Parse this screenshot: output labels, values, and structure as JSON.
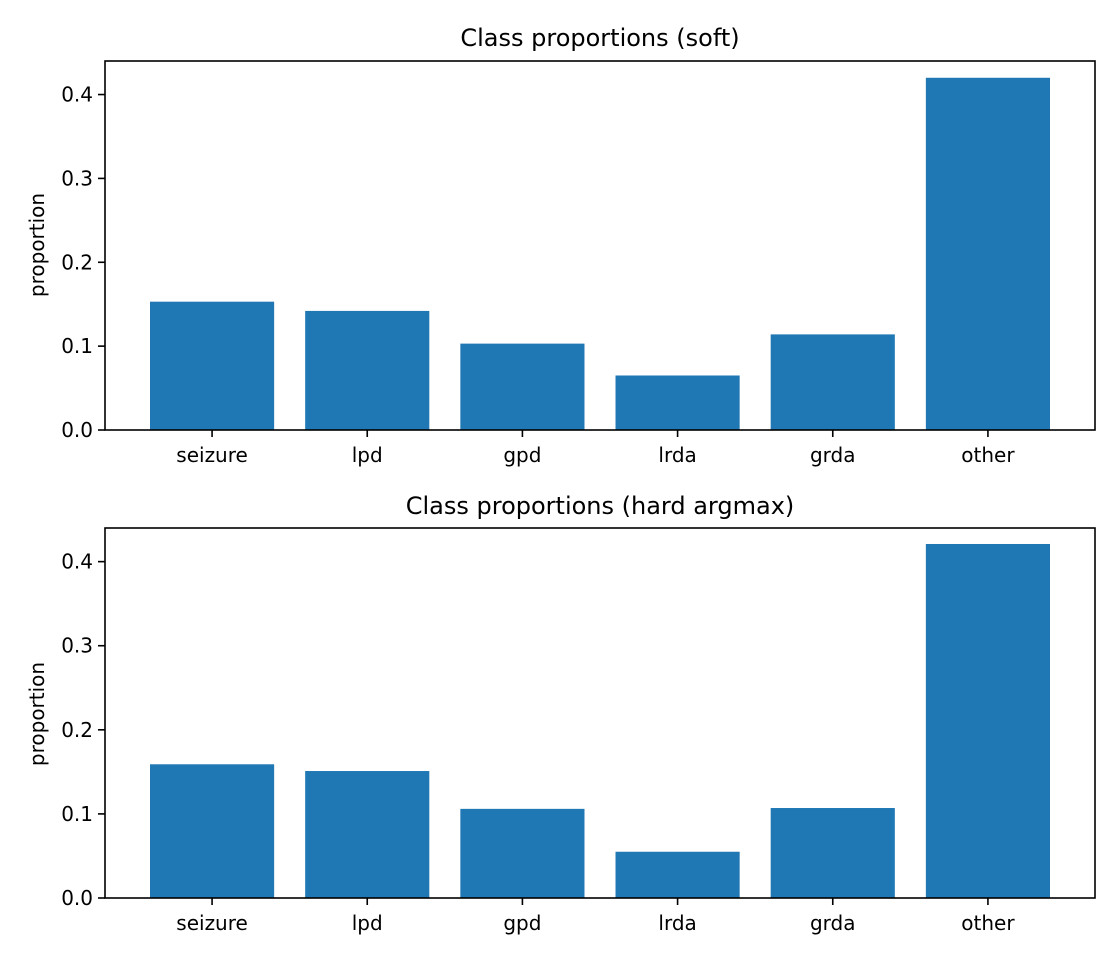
{
  "chart_data": [
    {
      "type": "bar",
      "title": "Class proportions (soft)",
      "xlabel": "",
      "ylabel": "proportion",
      "categories": [
        "seizure",
        "lpd",
        "gpd",
        "lrda",
        "grda",
        "other"
      ],
      "values": [
        0.153,
        0.142,
        0.103,
        0.065,
        0.114,
        0.42
      ],
      "ylim": [
        0,
        0.44
      ],
      "yticks": [
        "0.0",
        "0.1",
        "0.2",
        "0.3",
        "0.4"
      ],
      "ytick_values": [
        0,
        0.1,
        0.2,
        0.3,
        0.4
      ],
      "bar_color": "#1f77b4",
      "grid": false
    },
    {
      "type": "bar",
      "title": "Class proportions (hard argmax)",
      "xlabel": "",
      "ylabel": "proportion",
      "categories": [
        "seizure",
        "lpd",
        "gpd",
        "lrda",
        "grda",
        "other"
      ],
      "values": [
        0.159,
        0.151,
        0.106,
        0.055,
        0.107,
        0.421
      ],
      "ylim": [
        0,
        0.44
      ],
      "yticks": [
        "0.0",
        "0.1",
        "0.2",
        "0.3",
        "0.4"
      ],
      "ytick_values": [
        0,
        0.1,
        0.2,
        0.3,
        0.4
      ],
      "bar_color": "#1f77b4",
      "grid": false
    }
  ]
}
